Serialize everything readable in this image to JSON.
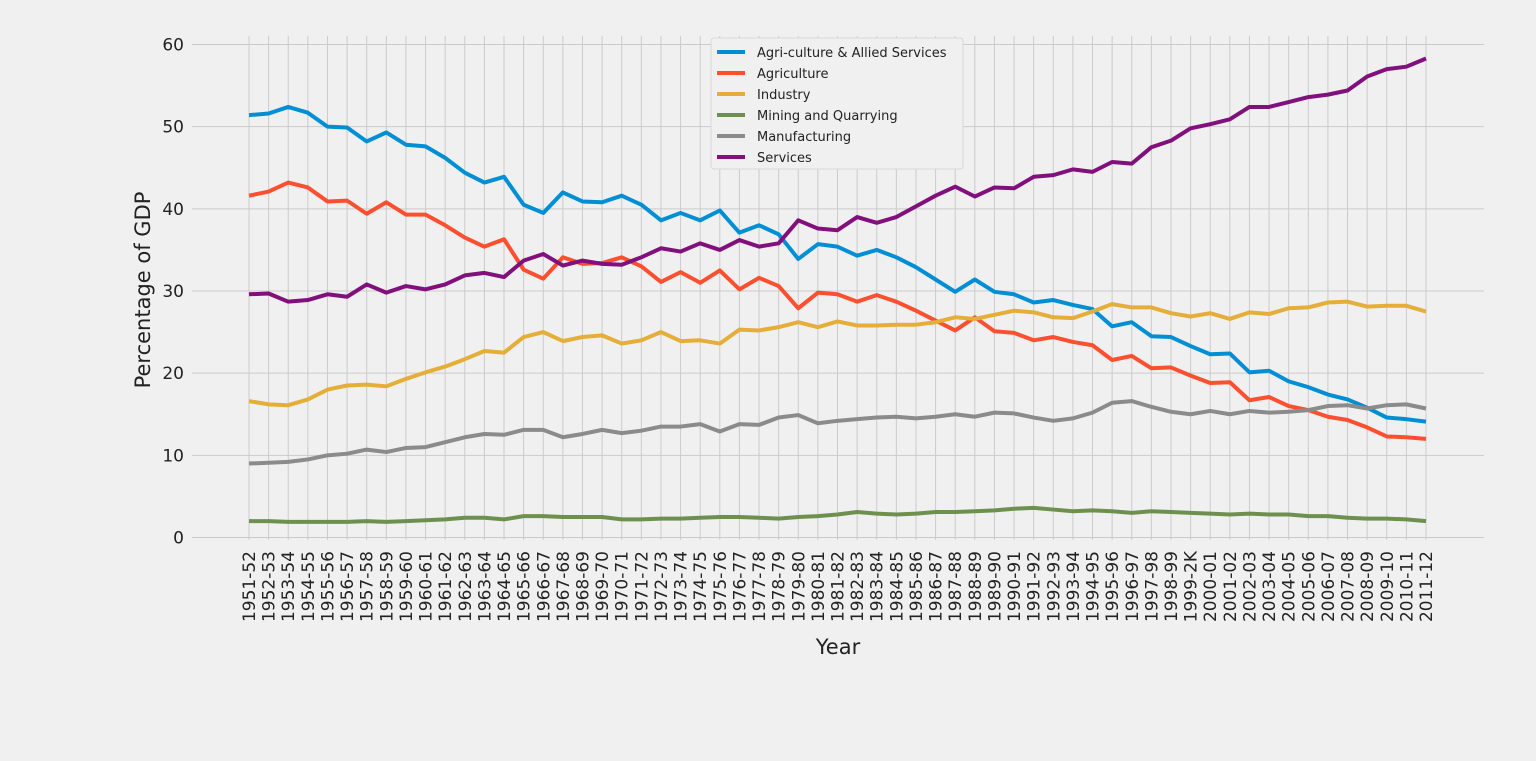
{
  "chart_data": {
    "type": "line",
    "title": "",
    "xlabel": "Year",
    "ylabel": "Percentage of GDP",
    "ylim": [
      0,
      62
    ],
    "yticks": [
      0,
      10,
      20,
      30,
      40,
      50,
      60
    ],
    "grid": true,
    "legend_position": "top-center",
    "categories": [
      "1951-52",
      "1952-53",
      "1953-54",
      "1954-55",
      "1955-56",
      "1956-57",
      "1957-58",
      "1958-59",
      "1959-60",
      "1960-61",
      "1961-62",
      "1962-63",
      "1963-64",
      "1964-65",
      "1965-66",
      "1966-67",
      "1967-68",
      "1968-69",
      "1969-70",
      "1970-71",
      "1971-72",
      "1972-73",
      "1973-74",
      "1974-75",
      "1975-76",
      "1976-77",
      "1977-78",
      "1978-79",
      "1979-80",
      "1980-81",
      "1981-82",
      "1982-83",
      "1983-84",
      "1984-85",
      "1985-86",
      "1986-87",
      "1987-88",
      "1988-89",
      "1989-90",
      "1990-91",
      "1991-92",
      "1992-93",
      "1993-94",
      "1994-95",
      "1995-96",
      "1996-97",
      "1997-98",
      "1998-99",
      "1999-2K",
      "2000-01",
      "2001-02",
      "2002-03",
      "2003-04",
      "2004-05",
      "2005-06",
      "2006-07",
      "2007-08",
      "2008-09",
      "2009-10",
      "2010-11",
      "2011-12"
    ],
    "series": [
      {
        "name": "Agri-culture & Allied Services",
        "color": "#008fd5",
        "values": [
          51.4,
          51.6,
          52.4,
          51.7,
          50.0,
          49.9,
          48.2,
          49.3,
          47.8,
          47.6,
          46.2,
          44.4,
          43.2,
          43.9,
          40.5,
          39.5,
          42.0,
          40.9,
          40.8,
          41.6,
          40.5,
          38.6,
          39.5,
          38.6,
          39.8,
          37.1,
          38.0,
          36.9,
          33.9,
          35.7,
          35.4,
          34.3,
          35.0,
          34.1,
          32.9,
          31.4,
          29.9,
          31.4,
          29.9,
          29.6,
          28.6,
          28.9,
          28.3,
          27.8,
          25.7,
          26.2,
          24.5,
          24.4,
          23.3,
          22.3,
          22.4,
          20.1,
          20.3,
          19.0,
          18.3,
          17.4,
          16.8,
          15.8,
          14.6,
          14.4,
          14.1
        ]
      },
      {
        "name": "Agriculture",
        "color": "#fc4f30",
        "values": [
          41.6,
          42.1,
          43.2,
          42.6,
          40.9,
          41.0,
          39.4,
          40.8,
          39.3,
          39.3,
          38.0,
          36.5,
          35.4,
          36.3,
          32.6,
          31.5,
          34.1,
          33.3,
          33.4,
          34.1,
          33.0,
          31.1,
          32.3,
          31.0,
          32.5,
          30.2,
          31.6,
          30.6,
          27.9,
          29.8,
          29.6,
          28.7,
          29.5,
          28.7,
          27.6,
          26.4,
          25.2,
          26.8,
          25.1,
          24.9,
          24.0,
          24.4,
          23.8,
          23.4,
          21.6,
          22.1,
          20.6,
          20.7,
          19.7,
          18.8,
          18.9,
          16.7,
          17.1,
          16.0,
          15.5,
          14.7,
          14.3,
          13.4,
          12.3,
          12.2,
          12.0
        ]
      },
      {
        "name": "Industry",
        "color": "#e5ae38",
        "values": [
          16.6,
          16.2,
          16.1,
          16.8,
          18.0,
          18.5,
          18.6,
          18.4,
          19.3,
          20.1,
          20.8,
          21.7,
          22.7,
          22.5,
          24.4,
          25.0,
          23.9,
          24.4,
          24.6,
          23.6,
          24.0,
          25.0,
          23.9,
          24.0,
          23.6,
          25.3,
          25.2,
          25.6,
          26.2,
          25.6,
          26.3,
          25.8,
          25.8,
          25.9,
          25.9,
          26.2,
          26.8,
          26.6,
          27.1,
          27.6,
          27.4,
          26.8,
          26.7,
          27.5,
          28.4,
          28.0,
          28.0,
          27.3,
          26.9,
          27.3,
          26.6,
          27.4,
          27.2,
          27.9,
          28.0,
          28.6,
          28.7,
          28.1,
          28.2,
          28.2,
          27.5
        ]
      },
      {
        "name": "Mining and Quarrying",
        "color": "#6d904f",
        "values": [
          2.0,
          2.0,
          1.9,
          1.9,
          1.9,
          1.9,
          2.0,
          1.9,
          2.0,
          2.1,
          2.2,
          2.4,
          2.4,
          2.2,
          2.6,
          2.6,
          2.5,
          2.5,
          2.5,
          2.2,
          2.2,
          2.3,
          2.3,
          2.4,
          2.5,
          2.5,
          2.4,
          2.3,
          2.5,
          2.6,
          2.8,
          3.1,
          2.9,
          2.8,
          2.9,
          3.1,
          3.1,
          3.2,
          3.3,
          3.5,
          3.6,
          3.4,
          3.2,
          3.3,
          3.2,
          3.0,
          3.2,
          3.1,
          3.0,
          2.9,
          2.8,
          2.9,
          2.8,
          2.8,
          2.6,
          2.6,
          2.4,
          2.3,
          2.3,
          2.2,
          2.0
        ]
      },
      {
        "name": "Manufacturing",
        "color": "#8b8b8b",
        "values": [
          9.0,
          9.1,
          9.2,
          9.5,
          10.0,
          10.2,
          10.7,
          10.4,
          10.9,
          11.0,
          11.6,
          12.2,
          12.6,
          12.5,
          13.1,
          13.1,
          12.2,
          12.6,
          13.1,
          12.7,
          13.0,
          13.5,
          13.5,
          13.8,
          12.9,
          13.8,
          13.7,
          14.6,
          14.9,
          13.9,
          14.2,
          14.4,
          14.6,
          14.7,
          14.5,
          14.7,
          15.0,
          14.7,
          15.2,
          15.1,
          14.6,
          14.2,
          14.5,
          15.2,
          16.4,
          16.6,
          15.9,
          15.3,
          15.0,
          15.4,
          15.0,
          15.4,
          15.2,
          15.3,
          15.5,
          16.0,
          16.1,
          15.7,
          16.1,
          16.2,
          15.7
        ]
      },
      {
        "name": "Services",
        "color": "#810f7c",
        "values": [
          29.6,
          29.7,
          28.7,
          28.9,
          29.6,
          29.3,
          30.8,
          29.8,
          30.6,
          30.2,
          30.8,
          31.9,
          32.2,
          31.7,
          33.7,
          34.5,
          33.1,
          33.7,
          33.3,
          33.2,
          34.1,
          35.2,
          34.8,
          35.8,
          35.0,
          36.2,
          35.4,
          35.8,
          38.6,
          37.6,
          37.4,
          39.0,
          38.3,
          39.0,
          40.3,
          41.6,
          42.7,
          41.5,
          42.6,
          42.5,
          43.9,
          44.1,
          44.8,
          44.5,
          45.7,
          45.5,
          47.5,
          48.3,
          49.8,
          50.3,
          50.9,
          52.4,
          52.4,
          53.0,
          53.6,
          53.9,
          54.4,
          56.1,
          57.0,
          57.3,
          58.3
        ]
      }
    ]
  }
}
